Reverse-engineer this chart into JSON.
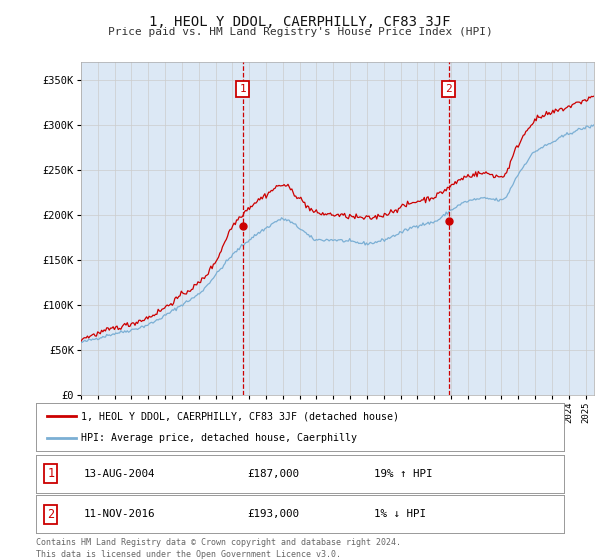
{
  "title": "1, HEOL Y DDOL, CAERPHILLY, CF83 3JF",
  "subtitle": "Price paid vs. HM Land Registry's House Price Index (HPI)",
  "ylim": [
    0,
    370000
  ],
  "xlim_start": 1995.0,
  "xlim_end": 2025.5,
  "bg_color": "#dce8f5",
  "plot_bg": "#ffffff",
  "grid_color": "#cccccc",
  "hpi_color": "#7bafd4",
  "price_color": "#cc0000",
  "sale1": {
    "year": 2004.617,
    "price": 187000,
    "label": "1"
  },
  "sale2": {
    "year": 2016.867,
    "price": 193000,
    "label": "2"
  },
  "legend_line1": "1, HEOL Y DDOL, CAERPHILLY, CF83 3JF (detached house)",
  "legend_line2": "HPI: Average price, detached house, Caerphilly",
  "note1_date": "13-AUG-2004",
  "note1_price": "£187,000",
  "note1_pct": "19% ↑ HPI",
  "note2_date": "11-NOV-2016",
  "note2_price": "£193,000",
  "note2_pct": "1% ↓ HPI",
  "footer": "Contains HM Land Registry data © Crown copyright and database right 2024.\nThis data is licensed under the Open Government Licence v3.0.",
  "hpi_ctrl_y": [
    1995,
    1996,
    1997,
    1998,
    1999,
    2000,
    2001,
    2002,
    2003,
    2004,
    2005,
    2006,
    2007,
    2008,
    2009,
    2010,
    2011,
    2012,
    2013,
    2014,
    2015,
    2016,
    2017,
    2018,
    2019,
    2020,
    2021,
    2022,
    2023,
    2024,
    2025.3
  ],
  "hpi_ctrl_v": [
    58000,
    63000,
    68000,
    72000,
    78000,
    88000,
    100000,
    112000,
    133000,
    155000,
    172000,
    185000,
    195000,
    185000,
    172000,
    172000,
    170000,
    168000,
    172000,
    180000,
    188000,
    192000,
    205000,
    215000,
    218000,
    216000,
    245000,
    270000,
    280000,
    290000,
    298000
  ],
  "price_ctrl_y": [
    1995,
    1996,
    1997,
    1998,
    1999,
    2000,
    2001,
    2002,
    2003,
    2004,
    2005,
    2006,
    2007,
    2008,
    2009,
    2010,
    2011,
    2012,
    2013,
    2014,
    2015,
    2016,
    2017,
    2018,
    2019,
    2020,
    2021,
    2022,
    2023,
    2024,
    2025.3
  ],
  "price_ctrl_v": [
    62000,
    68000,
    74000,
    79000,
    86000,
    97000,
    111000,
    124000,
    148000,
    187000,
    208000,
    222000,
    233000,
    218000,
    202000,
    200000,
    198000,
    196000,
    200000,
    208000,
    215000,
    220000,
    232000,
    243000,
    246000,
    242000,
    278000,
    305000,
    313000,
    320000,
    330000
  ]
}
